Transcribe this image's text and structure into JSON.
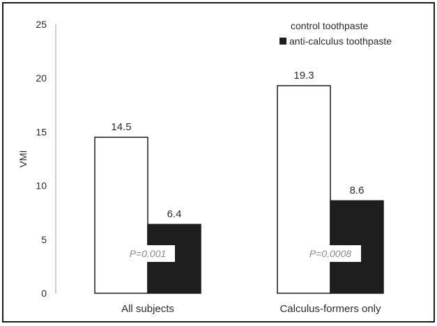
{
  "chart_data": {
    "type": "bar",
    "categories": [
      "All subjects",
      "Calculus-formers only"
    ],
    "series": [
      {
        "name": "control toothpaste",
        "values": [
          14.5,
          19.3
        ],
        "color": "#ffffff"
      },
      {
        "name": "anti-calculus toothpaste",
        "values": [
          6.4,
          8.6
        ],
        "color": "#1e1e1e"
      }
    ],
    "data_labels": [
      [
        "14.5",
        "19.3"
      ],
      [
        "6.4",
        "8.6"
      ]
    ],
    "annotations": [
      "P=0.001",
      "P=0.0008"
    ],
    "title": "",
    "xlabel": "",
    "ylabel": "VMI",
    "ylim": [
      0,
      25
    ],
    "yticks": [
      "0",
      "5",
      "10",
      "15",
      "20",
      "25"
    ],
    "grid": false,
    "legend_position": "top-right"
  }
}
